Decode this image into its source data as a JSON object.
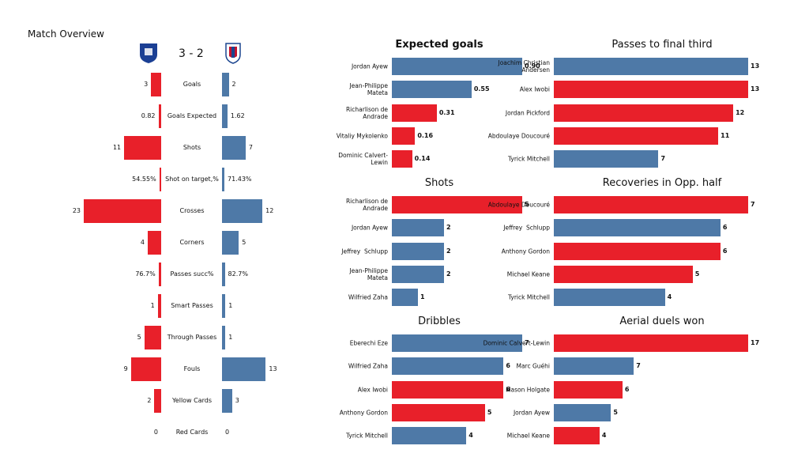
{
  "chart_data": [
    {
      "type": "paired-bar",
      "title": "Match Overview",
      "score": "3 - 2",
      "categories": [
        "Goals",
        "Goals Expected",
        "Shots",
        "Shot on target,%",
        "Crosses",
        "Corners",
        "Passes succ%",
        "Smart Passes",
        "Through Passes",
        "Fouls",
        "Yellow Cards",
        "Red Cards"
      ],
      "series": [
        {
          "color": "#e8202a",
          "values": [
            3,
            0.82,
            11,
            0.5455,
            23,
            4,
            0.767,
            1,
            5,
            9,
            2,
            0
          ],
          "value_labels": [
            "3",
            "0.82",
            "11",
            "54.55%",
            "23",
            "4",
            "76.7%",
            "1",
            "5",
            "9",
            "2",
            "0"
          ]
        },
        {
          "color": "#4e79a7",
          "values": [
            2,
            1.62,
            7,
            0.7143,
            12,
            5,
            0.827,
            1,
            1,
            13,
            3,
            0
          ],
          "value_labels": [
            "2",
            "1.62",
            "7",
            "71.43%",
            "12",
            "5",
            "82.7%",
            "1",
            "1",
            "13",
            "3",
            "0"
          ]
        }
      ]
    },
    {
      "type": "hbar",
      "title": "Expected goals",
      "categories": [
        "Jordan Ayew",
        "Jean-Philippe Mateta",
        "Richarlison de Andrade",
        "Vitaliy Mykolenko",
        "Dominic Calvert-Lewin"
      ],
      "values": [
        0.9,
        0.55,
        0.31,
        0.16,
        0.14
      ],
      "value_labels": [
        "0.90",
        "0.55",
        "0.31",
        "0.16",
        "0.14"
      ],
      "colors": [
        "#4e79a7",
        "#4e79a7",
        "#e8202a",
        "#e8202a",
        "#e8202a"
      ]
    },
    {
      "type": "hbar",
      "title": "Passes to final third",
      "categories": [
        "Joachim Christian Andersen",
        "Alex Iwobi",
        "Jordan Pickford",
        "Abdoulaye Doucouré",
        "Tyrick Mitchell"
      ],
      "values": [
        13,
        13,
        12,
        11,
        7
      ],
      "colors": [
        "#4e79a7",
        "#e8202a",
        "#e8202a",
        "#e8202a",
        "#4e79a7"
      ]
    },
    {
      "type": "hbar",
      "title": "Shots",
      "categories": [
        "Richarlison de Andrade",
        "Jordan Ayew",
        "Jeffrey  Schlupp",
        "Jean-Philippe Mateta",
        "Wilfried Zaha"
      ],
      "values": [
        5,
        2,
        2,
        2,
        1
      ],
      "colors": [
        "#e8202a",
        "#4e79a7",
        "#4e79a7",
        "#4e79a7",
        "#4e79a7"
      ]
    },
    {
      "type": "hbar",
      "title": "Recoveries in Opp. half",
      "categories": [
        "Abdoulaye Doucouré",
        "Jeffrey  Schlupp",
        "Anthony Gordon",
        "Michael Keane",
        "Tyrick Mitchell"
      ],
      "values": [
        7,
        6,
        6,
        5,
        4
      ],
      "colors": [
        "#e8202a",
        "#4e79a7",
        "#e8202a",
        "#e8202a",
        "#4e79a7"
      ]
    },
    {
      "type": "hbar",
      "title": "Dribbles",
      "categories": [
        "Eberechi Eze",
        "Wilfried Zaha",
        "Alex Iwobi",
        "Anthony Gordon",
        "Tyrick Mitchell"
      ],
      "values": [
        7,
        6,
        6,
        5,
        4
      ],
      "colors": [
        "#4e79a7",
        "#4e79a7",
        "#e8202a",
        "#e8202a",
        "#4e79a7"
      ]
    },
    {
      "type": "hbar",
      "title": "Aerial duels won",
      "categories": [
        "Dominic Calvert-Lewin",
        "Marc Guéhi",
        "Mason Holgate",
        "Jordan Ayew",
        "Michael Keane"
      ],
      "values": [
        17,
        7,
        6,
        5,
        4
      ],
      "colors": [
        "#e8202a",
        "#4e79a7",
        "#e8202a",
        "#4e79a7",
        "#e8202a"
      ]
    }
  ]
}
